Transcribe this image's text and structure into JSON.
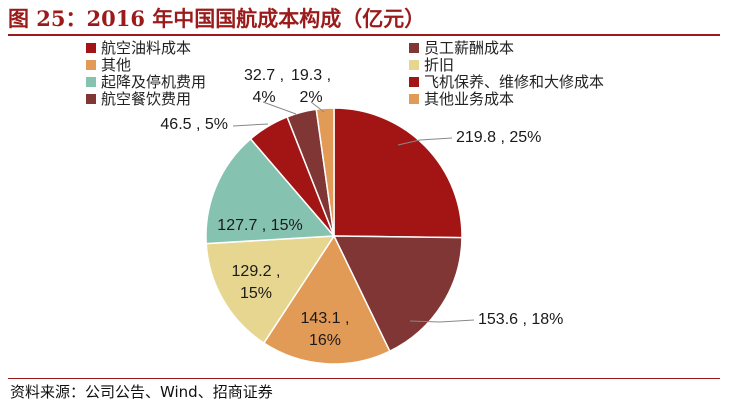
{
  "title": "图 25：2016 年中国国航成本构成（亿元）",
  "source": "资料来源：公司公告、Wind、招商证券",
  "legend": [
    {
      "label": "航空油料成本",
      "color": "#a31515"
    },
    {
      "label": "员工薪酬成本",
      "color": "#7f3634"
    },
    {
      "label": "其他",
      "color": "#e29a57"
    },
    {
      "label": "折旧",
      "color": "#e6d68f"
    },
    {
      "label": "起降及停机费用",
      "color": "#86c2b0"
    },
    {
      "label": "飞机保养、维修和大修成本",
      "color": "#a31515"
    },
    {
      "label": "航空餐饮费用",
      "color": "#7f3634"
    },
    {
      "label": "其他业务成本",
      "color": "#e29a57"
    }
  ],
  "chart_data": {
    "type": "pie",
    "title": "2016 年中国国航成本构成（亿元）",
    "slices": [
      {
        "name": "航空油料成本",
        "value": 219.8,
        "percent": "25%",
        "color": "#a31515",
        "label_line1": "219.8 , 25%",
        "label_line2": ""
      },
      {
        "name": "员工薪酬成本",
        "value": 153.6,
        "percent": "18%",
        "color": "#7f3634",
        "label_line1": "153.6 , 18%",
        "label_line2": ""
      },
      {
        "name": "其他",
        "value": 143.1,
        "percent": "16%",
        "color": "#e29a57",
        "label_line1": "143.1 ,",
        "label_line2": "16%"
      },
      {
        "name": "折旧",
        "value": 129.2,
        "percent": "15%",
        "color": "#e6d68f",
        "label_line1": "129.2 ,",
        "label_line2": "15%"
      },
      {
        "name": "起降及停机费用",
        "value": 127.7,
        "percent": "15%",
        "color": "#86c2b0",
        "label_line1": "127.7 , 15%",
        "label_line2": ""
      },
      {
        "name": "飞机保养、维修和大修成本",
        "value": 46.5,
        "percent": "5%",
        "color": "#a31515",
        "label_line1": "46.5 , 5%",
        "label_line2": ""
      },
      {
        "name": "航空餐饮费用",
        "value": 32.7,
        "percent": "4%",
        "color": "#7f3634",
        "label_line1": "32.7 ,",
        "label_line2": "4%"
      },
      {
        "name": "其他业务成本",
        "value": 19.3,
        "percent": "2%",
        "color": "#e29a57",
        "label_line1": "19.3 ,",
        "label_line2": "2%"
      }
    ]
  }
}
